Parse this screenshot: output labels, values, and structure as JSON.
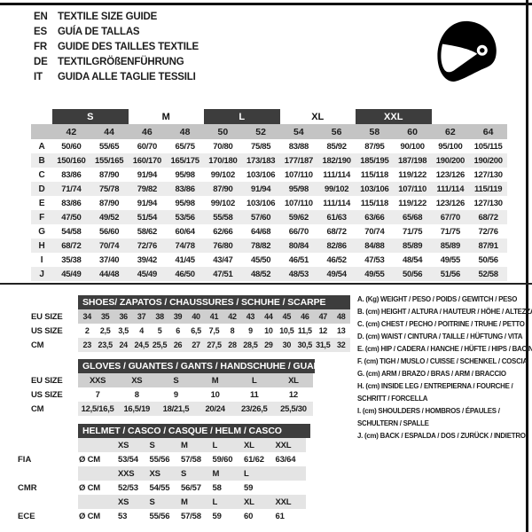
{
  "languages": [
    {
      "code": "EN",
      "title": "TEXTILE SIZE GUIDE"
    },
    {
      "code": "ES",
      "title": "GUÍA DE TALLAS"
    },
    {
      "code": "FR",
      "title": "GUIDE DES TAILLES TEXTILE"
    },
    {
      "code": "DE",
      "title": "TEXTILGRÖßENFÜHRUNG"
    },
    {
      "code": "IT",
      "title": "GUIDA ALLE TAGLIE TESSILI"
    }
  ],
  "size_table": {
    "groups": [
      {
        "label": "S",
        "boxed": true
      },
      {
        "label": "M",
        "boxed": false
      },
      {
        "label": "L",
        "boxed": true
      },
      {
        "label": "XL",
        "boxed": false
      },
      {
        "label": "XXL",
        "boxed": true
      }
    ],
    "columns": [
      "42",
      "44",
      "46",
      "48",
      "50",
      "52",
      "54",
      "56",
      "58",
      "60",
      "62",
      "64"
    ],
    "rows": [
      {
        "label": "A",
        "values": [
          "50/60",
          "55/65",
          "60/70",
          "65/75",
          "70/80",
          "75/85",
          "83/88",
          "85/92",
          "87/95",
          "90/100",
          "95/100",
          "105/115"
        ]
      },
      {
        "label": "B",
        "values": [
          "150/160",
          "155/165",
          "160/170",
          "165/175",
          "170/180",
          "173/183",
          "177/187",
          "182/190",
          "185/195",
          "187/198",
          "190/200",
          "190/200"
        ]
      },
      {
        "label": "C",
        "values": [
          "83/86",
          "87/90",
          "91/94",
          "95/98",
          "99/102",
          "103/106",
          "107/110",
          "111/114",
          "115/118",
          "119/122",
          "123/126",
          "127/130"
        ]
      },
      {
        "label": "D",
        "values": [
          "71/74",
          "75/78",
          "79/82",
          "83/86",
          "87/90",
          "91/94",
          "95/98",
          "99/102",
          "103/106",
          "107/110",
          "111/114",
          "115/119"
        ]
      },
      {
        "label": "E",
        "values": [
          "83/86",
          "87/90",
          "91/94",
          "95/98",
          "99/102",
          "103/106",
          "107/110",
          "111/114",
          "115/118",
          "119/122",
          "123/126",
          "127/130"
        ]
      },
      {
        "label": "F",
        "values": [
          "47/50",
          "49/52",
          "51/54",
          "53/56",
          "55/58",
          "57/60",
          "59/62",
          "61/63",
          "63/66",
          "65/68",
          "67/70",
          "68/72"
        ]
      },
      {
        "label": "G",
        "values": [
          "54/58",
          "56/60",
          "58/62",
          "60/64",
          "62/66",
          "64/68",
          "66/70",
          "68/72",
          "70/74",
          "71/75",
          "71/75",
          "72/76"
        ]
      },
      {
        "label": "H",
        "values": [
          "68/72",
          "70/74",
          "72/76",
          "74/78",
          "76/80",
          "78/82",
          "80/84",
          "82/86",
          "84/88",
          "85/89",
          "85/89",
          "87/91"
        ]
      },
      {
        "label": "I",
        "values": [
          "35/38",
          "37/40",
          "39/42",
          "41/45",
          "43/47",
          "45/50",
          "46/51",
          "46/52",
          "47/53",
          "48/54",
          "49/55",
          "50/56"
        ]
      },
      {
        "label": "J",
        "values": [
          "45/49",
          "44/48",
          "45/49",
          "46/50",
          "47/51",
          "48/52",
          "48/53",
          "49/54",
          "49/55",
          "50/56",
          "51/56",
          "52/58"
        ]
      }
    ]
  },
  "shoes": {
    "title": "SHOES/ ZAPATOS / CHAUSSURES / SCHUHE / SCARPE",
    "row_labels": [
      "EU SIZE",
      "US SIZE",
      "CM"
    ],
    "rows": [
      [
        "34",
        "35",
        "36",
        "37",
        "38",
        "39",
        "40",
        "41",
        "42",
        "43",
        "44",
        "45",
        "46",
        "47",
        "48"
      ],
      [
        "2",
        "2,5",
        "3,5",
        "4",
        "5",
        "6",
        "6,5",
        "7,5",
        "8",
        "9",
        "10",
        "10,5",
        "11,5",
        "12",
        "13"
      ],
      [
        "23",
        "23,5",
        "24",
        "24,5",
        "25,5",
        "26",
        "27",
        "27,5",
        "28",
        "28,5",
        "29",
        "30",
        "30,5",
        "31,5",
        "32"
      ]
    ]
  },
  "gloves": {
    "title": "GLOVES / GUANTES / GANTS / HANDSCHUHE / GUANTI",
    "row_labels": [
      "EU SIZE",
      "US SIZE",
      "CM"
    ],
    "rows": [
      [
        "XXS",
        "XS",
        "S",
        "M",
        "L",
        "XL"
      ],
      [
        "7",
        "8",
        "9",
        "10",
        "11",
        "12"
      ],
      [
        "12,5/16,5",
        "16,5/19",
        "18/21,5",
        "20/24",
        "23/26,5",
        "25,5/30"
      ]
    ]
  },
  "helmet": {
    "title": "HELMET / CASCO / CASQUE / HELM / CASCO",
    "side_labels": [
      "FIA",
      "CMR",
      "ECE"
    ],
    "rows": [
      {
        "type": "sizes",
        "cells": [
          "",
          "XS",
          "S",
          "M",
          "L",
          "XL",
          "XXL"
        ]
      },
      {
        "type": "values",
        "cells": [
          "Ø CM",
          "53/54",
          "55/56",
          "57/58",
          "59/60",
          "61/62",
          "63/64"
        ]
      },
      {
        "type": "sizes",
        "cells": [
          "",
          "XXS",
          "XS",
          "S",
          "M",
          "L",
          ""
        ]
      },
      {
        "type": "values",
        "cells": [
          "Ø CM",
          "52/53",
          "54/55",
          "56/57",
          "58",
          "59",
          ""
        ]
      },
      {
        "type": "sizes",
        "cells": [
          "",
          "XS",
          "S",
          "M",
          "L",
          "XL",
          "XXL"
        ]
      },
      {
        "type": "values",
        "cells": [
          "Ø CM",
          "53",
          "55/56",
          "57/58",
          "59",
          "60",
          "61"
        ]
      }
    ]
  },
  "legend": {
    "lines": [
      "A. (Kg) WEIGHT / PESO / POIDS / GEWITCH / PESO",
      "B. (cm) HEIGHT / ALTURA / HAUTEUR / HÖHE / ALTEZZA",
      "C. (cm) CHEST / PECHO / POITRINE / TRUHE / PETTO",
      "D. (cm) WAIST / CINTURA / TAILLE / HÜFTUNG / VITA",
      "E. (cm) HIP / CADERA / HANCHE / HÜFTE / HIPS / BACINO",
      "F. (cm) TIGH / MUSLO / CUISSE / SCHENKEL / COSCIA",
      "G. (cm) ARM / BRAZO / BRAS / ARM / BRACCIO",
      "H. (cm) INSIDE LEG / ENTREPIERNA / FOURCHE /",
      "SCHRITT / FORCELLA",
      "I. (cm) SHOULDERS / HOMBROS / ÉPAULES /",
      "SCHULTERN / SPALLE",
      "J. (cm) BACK / ESPALDA / DOS / ZURÜCK / INDIETRO"
    ]
  },
  "colors": {
    "dark_bar": "#3d3d3d",
    "number_bar": "#c4c4c4",
    "row_band": "#ececec",
    "eu_row": "#cfcfcf",
    "cm_row": "#e7e7e7",
    "helmet_row": "#e4e4e4",
    "frame": "#111111"
  }
}
